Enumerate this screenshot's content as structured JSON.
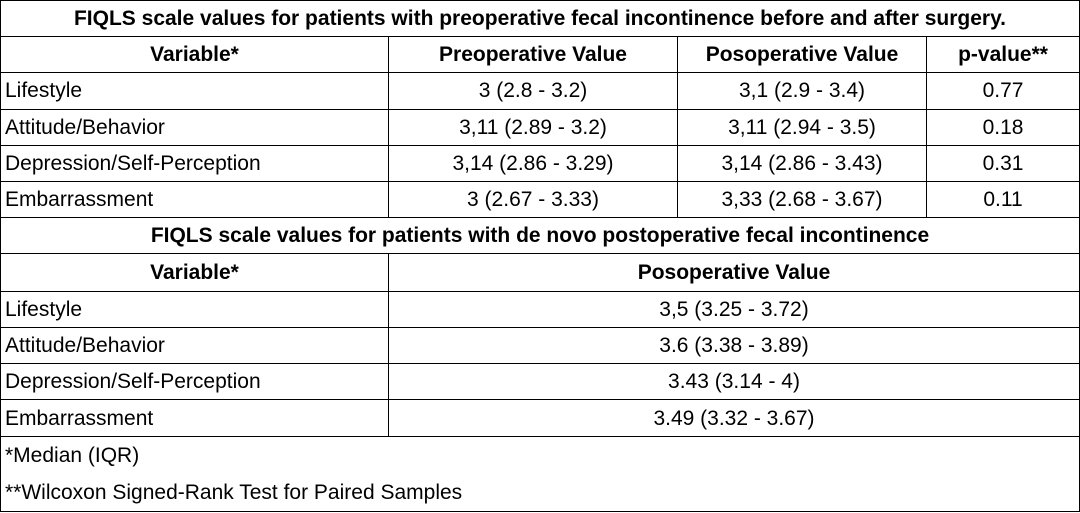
{
  "table1": {
    "title": "FIQLS scale values for patients with preoperative fecal incontinence before and after surgery.",
    "headers": [
      "Variable*",
      "Preoperative Value",
      "Posoperative Value",
      "p-value**"
    ],
    "rows": [
      {
        "variable": "Lifestyle",
        "pre": "3 (2.8 - 3.2)",
        "post": "3,1 (2.9 - 3.4)",
        "p": "0.77"
      },
      {
        "variable": "Attitude/Behavior",
        "pre": "3,11 (2.89 - 3.2)",
        "post": "3,11 (2.94 - 3.5)",
        "p": "0.18"
      },
      {
        "variable": "Depression/Self-Perception",
        "pre": "3,14 (2.86 - 3.29)",
        "post": "3,14 (2.86 - 3.43)",
        "p": "0.31"
      },
      {
        "variable": "Embarrassment",
        "pre": "3 (2.67 - 3.33)",
        "post": "3,33 (2.68 - 3.67)",
        "p": "0.11"
      }
    ]
  },
  "table2": {
    "title": "FIQLS scale values for patients with de novo postoperative fecal incontinence",
    "headers": [
      "Variable*",
      "Posoperative Value"
    ],
    "rows": [
      {
        "variable": "Lifestyle",
        "post": "3,5 (3.25 - 3.72)"
      },
      {
        "variable": "Attitude/Behavior",
        "post": "3.6 (3.38 - 3.89)"
      },
      {
        "variable": "Depression/Self-Perception",
        "post": "3.43 (3.14 - 4)"
      },
      {
        "variable": "Embarrassment",
        "post": "3.49 (3.32 - 3.67)"
      }
    ]
  },
  "footnotes": [
    "*Median (IQR)",
    "**Wilcoxon Signed-Rank Test for Paired Samples"
  ]
}
